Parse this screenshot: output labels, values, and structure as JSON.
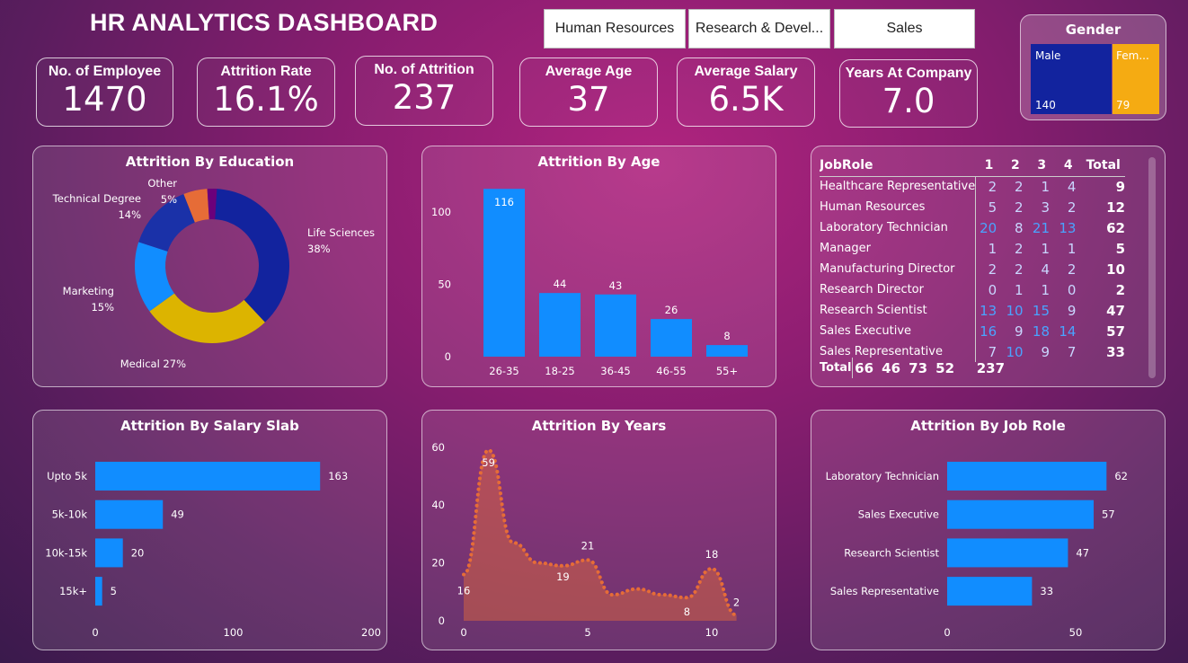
{
  "header": {
    "title": "HR ANALYTICS DASHBOARD"
  },
  "slicers": [
    "Human Resources",
    "Research & Devel...",
    "Sales"
  ],
  "kpis": [
    {
      "label": "No. of Employee",
      "value": "1470"
    },
    {
      "label": "Attrition Rate",
      "value": "16.1%"
    },
    {
      "label": "No. of Attrition",
      "value": "237"
    },
    {
      "label": "Average Age",
      "value": "37"
    },
    {
      "label": "Average Salary",
      "value": "6.5K"
    },
    {
      "label": "Years At Company",
      "value": "7.0"
    }
  ],
  "gender": {
    "title": "Gender",
    "male_label": "Male",
    "male_value": "140",
    "female_label": "Fem...",
    "female_value": "79",
    "male_color": "#12239e",
    "female_color": "#f5ab12"
  },
  "chart_data": [
    {
      "type": "pie",
      "title": "Attrition By Education",
      "donut": true,
      "slices": [
        {
          "label": "Life Sciences",
          "pct": 38,
          "color": "#12239e"
        },
        {
          "label": "Medical",
          "pct": 27,
          "color": "#dcb400"
        },
        {
          "label": "Marketing",
          "pct": 15,
          "color": "#118dff"
        },
        {
          "label": "Technical Degree",
          "pct": 14,
          "color": "#1a31a8"
        },
        {
          "label": "Other",
          "pct": 5,
          "color": "#e66c37"
        },
        {
          "label": "",
          "pct": 2,
          "color": "#6b007b"
        }
      ]
    },
    {
      "type": "bar",
      "title": "Attrition By Age",
      "categories": [
        "26-35",
        "18-25",
        "36-45",
        "46-55",
        "55+"
      ],
      "values": [
        116,
        44,
        43,
        26,
        8
      ],
      "yticks": [
        0,
        50,
        100
      ],
      "ylim": [
        0,
        125
      ],
      "color": "#118dff"
    },
    {
      "type": "bar",
      "orientation": "horizontal",
      "title": "Attrition By Salary Slab",
      "categories": [
        "Upto 5k",
        "5k-10k",
        "10k-15k",
        "15k+"
      ],
      "values": [
        163,
        49,
        20,
        5
      ],
      "xticks": [
        0,
        100,
        200
      ],
      "xlim": [
        0,
        200
      ],
      "color": "#118dff"
    },
    {
      "type": "area",
      "title": "Attrition By Years",
      "x": [
        0,
        1,
        2,
        3,
        4,
        5,
        6,
        7,
        8,
        9,
        10,
        11
      ],
      "y": [
        16,
        59,
        27,
        20,
        19,
        21,
        9,
        11,
        9,
        8,
        18,
        2
      ],
      "labeled": {
        "0": "16",
        "1": "59",
        "4": "19",
        "5": "21",
        "9": "8",
        "10": "18",
        "11": "2"
      },
      "xticks": [
        0,
        5,
        10
      ],
      "yticks": [
        0,
        20,
        40,
        60
      ],
      "ylim": [
        0,
        60
      ],
      "color": "#e66c37"
    },
    {
      "type": "bar",
      "orientation": "horizontal",
      "title": "Attrition By Job Role",
      "categories": [
        "Laboratory Technician",
        "Sales Executive",
        "Research Scientist",
        "Sales Representative"
      ],
      "values": [
        62,
        57,
        47,
        33
      ],
      "xticks": [
        0,
        50
      ],
      "color": "#118dff"
    }
  ],
  "matrix": {
    "header": [
      "JobRole",
      "1",
      "2",
      "3",
      "4",
      "Total"
    ],
    "rows": [
      [
        "Healthcare Representative",
        "2",
        "2",
        "1",
        "4",
        "9"
      ],
      [
        "Human Resources",
        "5",
        "2",
        "3",
        "2",
        "12"
      ],
      [
        "Laboratory Technician",
        "20",
        "8",
        "21",
        "13",
        "62"
      ],
      [
        "Manager",
        "1",
        "2",
        "1",
        "1",
        "5"
      ],
      [
        "Manufacturing Director",
        "2",
        "2",
        "4",
        "2",
        "10"
      ],
      [
        "Research Director",
        "0",
        "1",
        "1",
        "0",
        "2"
      ],
      [
        "Research Scientist",
        "13",
        "10",
        "15",
        "9",
        "47"
      ],
      [
        "Sales Executive",
        "16",
        "9",
        "18",
        "14",
        "57"
      ],
      [
        "Sales Representative",
        "7",
        "10",
        "9",
        "7",
        "33"
      ]
    ],
    "total": [
      "Total",
      "66",
      "46",
      "73",
      "52",
      "237"
    ]
  }
}
